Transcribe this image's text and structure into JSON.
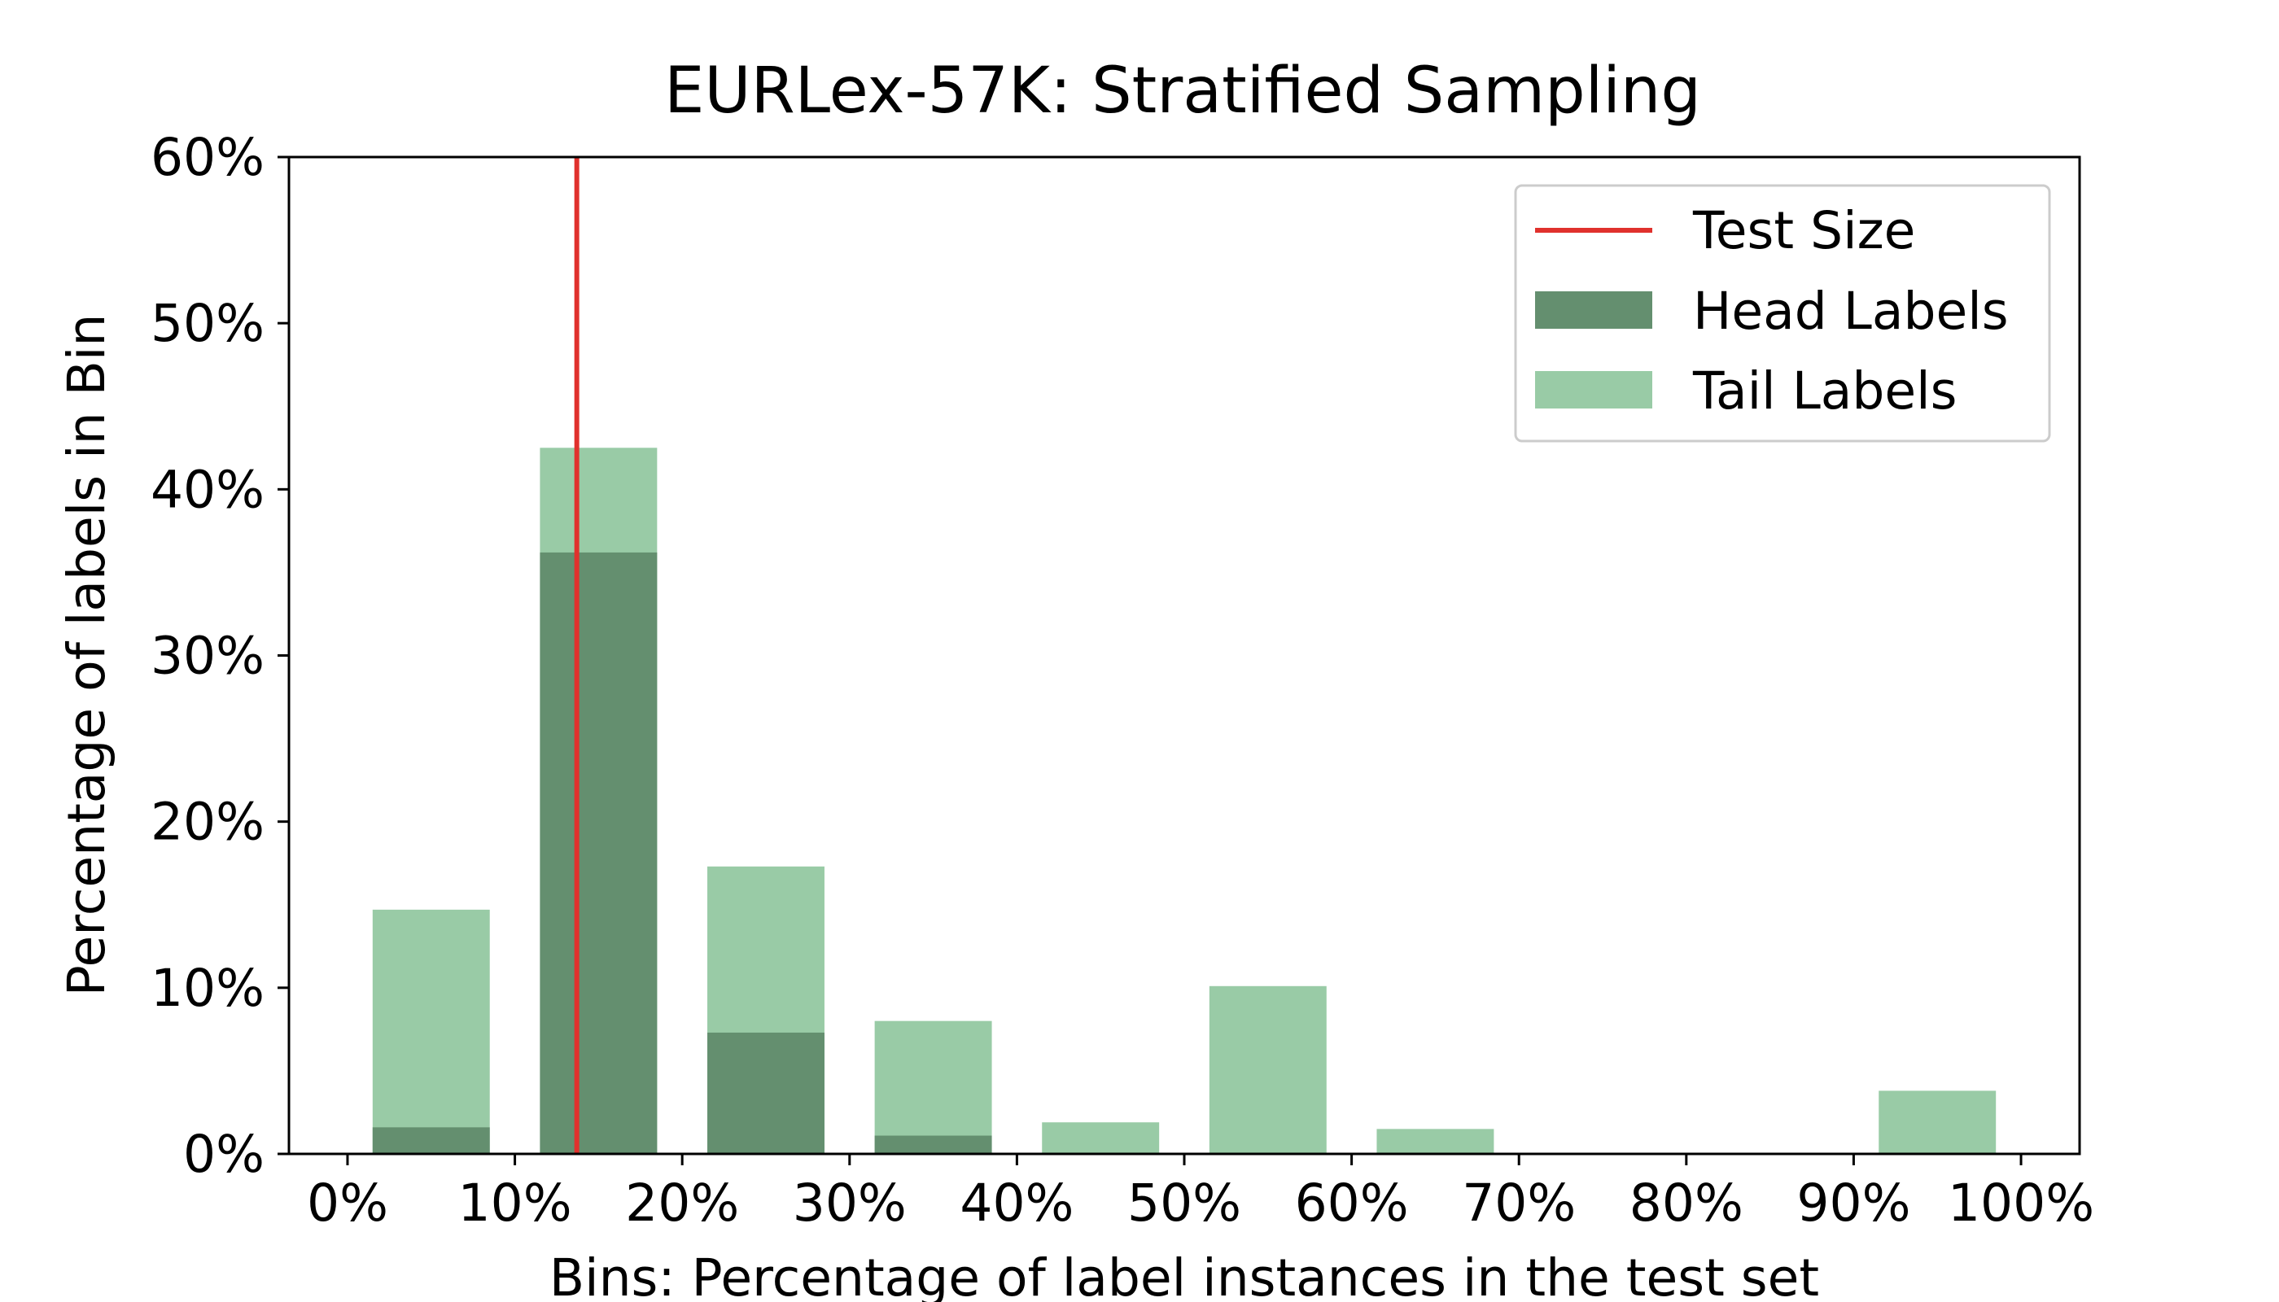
{
  "chart_data": {
    "type": "bar",
    "title": "EURLex-57K: Stratified Sampling",
    "xlabel": "Bins: Percentage of label instances in the test set",
    "ylabel": "Percentage of labels in Bin",
    "xlim": [
      -3.5,
      103.5
    ],
    "ylim": [
      0,
      60
    ],
    "x_ticks": [
      0,
      10,
      20,
      30,
      40,
      50,
      60,
      70,
      80,
      90,
      100
    ],
    "x_tick_labels": [
      "0%",
      "10%",
      "20%",
      "30%",
      "40%",
      "50%",
      "60%",
      "70%",
      "80%",
      "90%",
      "100%"
    ],
    "y_ticks": [
      0,
      10,
      20,
      30,
      40,
      50,
      60
    ],
    "y_tick_labels": [
      "0%",
      "10%",
      "20%",
      "30%",
      "40%",
      "50%",
      "60%"
    ],
    "bin_width": 7,
    "bin_centers": [
      5,
      15,
      25,
      35,
      45,
      55,
      65,
      75,
      85,
      95
    ],
    "series": [
      {
        "name": "Tail Labels",
        "color": "#99cba6",
        "values": [
          14.7,
          42.5,
          17.3,
          8.0,
          1.9,
          10.1,
          1.5,
          0,
          0,
          3.8
        ]
      },
      {
        "name": "Head Labels",
        "color": "#648f6f",
        "values": [
          1.6,
          36.2,
          7.3,
          1.1,
          0,
          0,
          0,
          0,
          0,
          0
        ]
      }
    ],
    "reference_line": {
      "name": "Test Size",
      "x": 13.7,
      "color": "#e0312d"
    },
    "legend": {
      "placement": "top-right",
      "entries": [
        "Test Size",
        "Head Labels",
        "Tail Labels"
      ]
    },
    "grid": false
  }
}
